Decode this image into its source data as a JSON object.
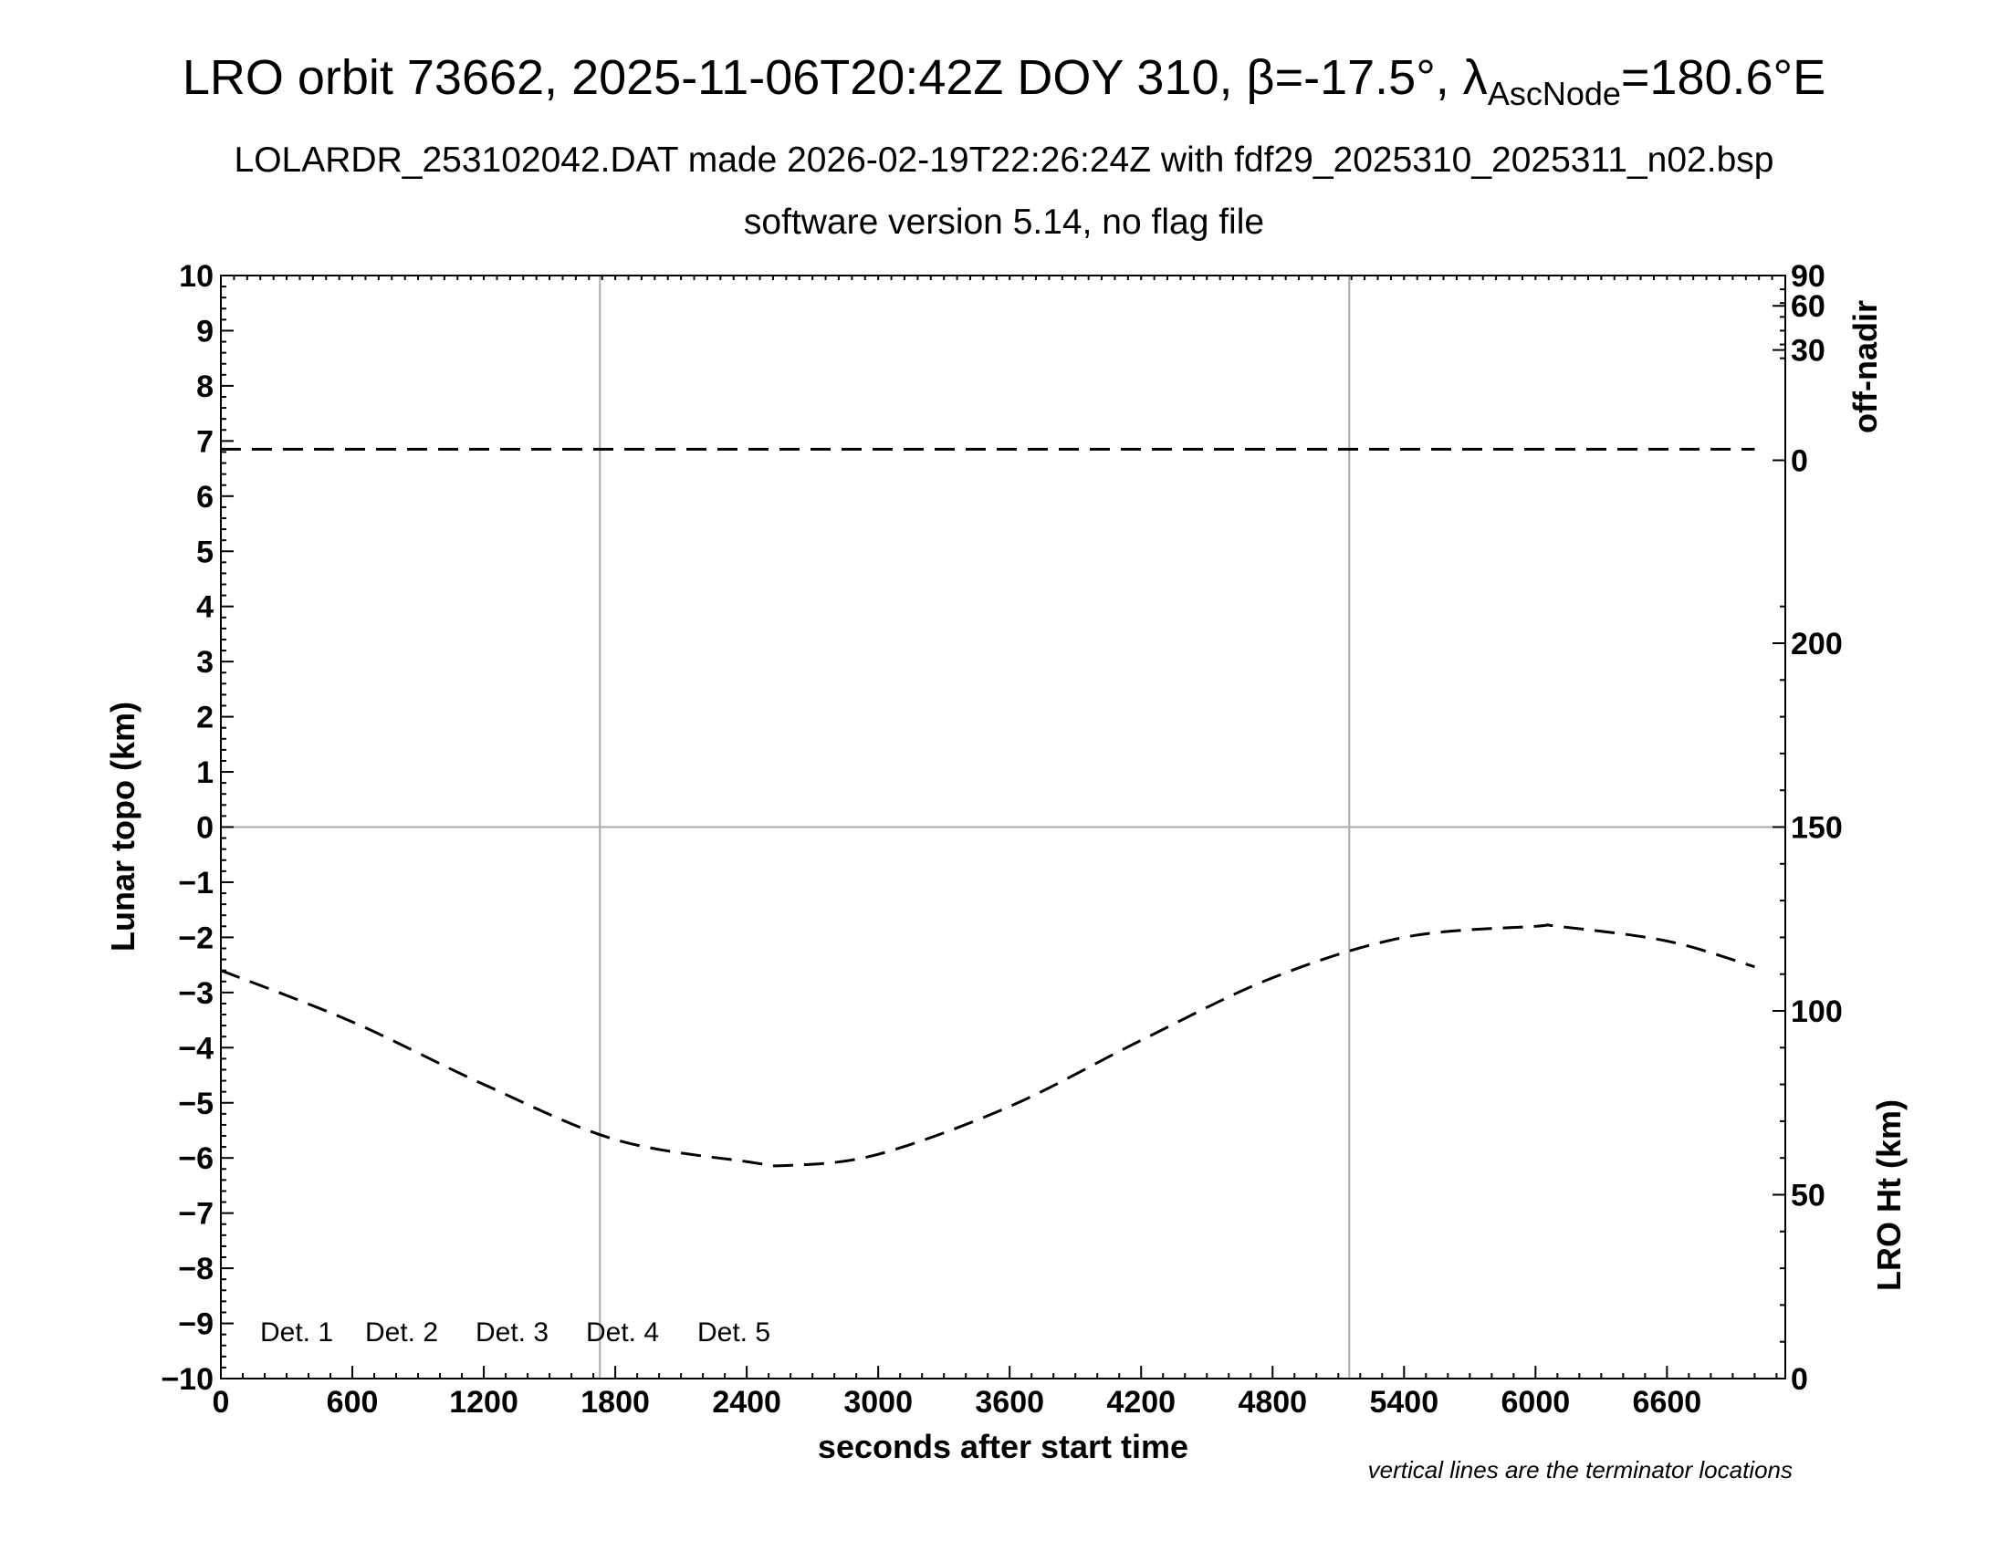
{
  "header": {
    "title_main": "LRO orbit 73662, 2025-11-06T20:42Z DOY 310, β=-17.5°, λ",
    "title_subscript": "AscNode",
    "title_end": "=180.6°E",
    "subtitle1": "LOLARDR_253102042.DAT made 2026-02-19T22:26:24Z with fdf29_2025310_2025311_n02.bsp",
    "subtitle2": "software version 5.14, no flag file"
  },
  "footnote": "vertical lines are the terminator locations",
  "chart_data": {
    "type": "line",
    "xlabel": "seconds after start time",
    "ylabel": "Lunar topo (km)",
    "xlim": [
      0,
      7140
    ],
    "ylim": [
      -10,
      10
    ],
    "x_ticks": [
      0,
      600,
      1200,
      1800,
      2400,
      3000,
      3600,
      4200,
      4800,
      5400,
      6000,
      6600
    ],
    "y_ticks": [
      10,
      9,
      8,
      7,
      6,
      5,
      4,
      3,
      2,
      1,
      0,
      -1,
      -2,
      -3,
      -4,
      -5,
      -6,
      -7,
      -8,
      -9,
      -10
    ],
    "y_tick_labels": [
      "10",
      "9",
      "8",
      "7",
      "6",
      "5",
      "4",
      "3",
      "2",
      "1",
      "0",
      "−1",
      "−2",
      "−3",
      "−4",
      "−5",
      "−6",
      "−7",
      "−8",
      "−9",
      "−10"
    ],
    "grid": false,
    "terminator_lines_x": [
      1730,
      5150
    ],
    "right_axis_top": {
      "label": "off-nadir",
      "ticks": [
        90,
        60,
        30,
        0
      ],
      "ticks_topo_position": [
        10,
        9.45,
        8.65,
        6.65
      ]
    },
    "right_axis_bottom": {
      "label": "LRO Ht (km)",
      "ylim": [
        0,
        300
      ],
      "ticks": [
        0,
        50,
        100,
        150,
        200
      ]
    },
    "series": [
      {
        "axis": "right_top",
        "style": "dashed",
        "color": "#000000",
        "x": [
          0,
          1000,
          2000,
          3000,
          4000,
          5000,
          6000,
          7000
        ],
        "y": [
          6.85,
          6.85,
          6.85,
          6.85,
          6.85,
          6.85,
          6.85,
          6.85
        ]
      },
      {
        "axis": "right_bottom",
        "style": "dashed",
        "color": "#000000",
        "x": [
          0,
          600,
          1200,
          1800,
          2400,
          2600,
          3000,
          3600,
          4200,
          4800,
          5400,
          6000,
          6100,
          6600,
          7000
        ],
        "y": [
          111,
          97,
          80,
          65,
          59,
          58,
          61,
          74,
          92,
          109,
          120,
          123,
          123,
          119,
          112
        ]
      }
    ],
    "legend": {
      "placement": "bottom-left",
      "items": [
        {
          "label": "Det. 1",
          "color": "#000000"
        },
        {
          "label": "Det. 2",
          "color": "#0000ff"
        },
        {
          "label": "Det. 3",
          "color": "#00ee00"
        },
        {
          "label": "Det. 4",
          "color": "#ffa500"
        },
        {
          "label": "Det. 5",
          "color": "#ff0000"
        }
      ]
    }
  }
}
